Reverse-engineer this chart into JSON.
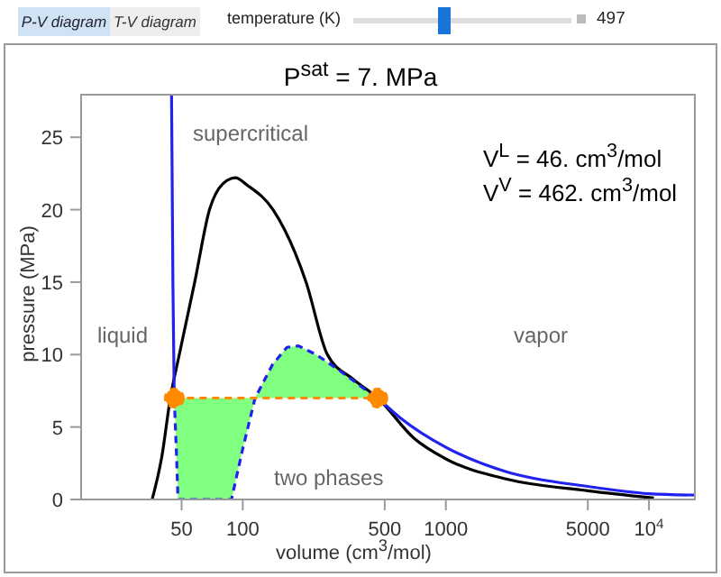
{
  "chart_data": {
    "type": "line",
    "title": "P$^{sat}$ = 7. MPa",
    "xlabel": "volume (cm$^{3}$/mol)",
    "ylabel": "pressure (MPa)",
    "log": "x",
    "xlim": [
      16,
      17000
    ],
    "xticks": [
      50,
      100,
      500,
      1000,
      5000,
      {
        "value": 10000,
        "label": "10$^{4}$"
      }
    ],
    "ylim": [
      0,
      28
    ],
    "yticks": [
      0,
      5,
      10,
      15,
      20,
      25
    ],
    "annotations": [
      "P-V diagram",
      "T-V diagram",
      "temperature (K)",
      "497",
      "supercritical",
      "liquid",
      "vapor",
      "two phases",
      "V$^{L}$ = 46. cm$^{3}$/mol",
      "V$^{V}$ = 462. cm$^{3}$/mol"
    ],
    "series": [
      {
        "color": "#000000",
        "line_style": "solid",
        "x": [
          35.8,
          40,
          44,
          48.7,
          58,
          68.6,
          80,
          92,
          105,
          141,
          205,
          261,
          350,
          462,
          700,
          1000,
          2000,
          5000,
          10570
        ],
        "values": [
          0,
          3,
          7,
          10,
          15,
          20,
          21.8,
          22.2,
          21.7,
          20,
          15,
          10,
          8.3,
          7,
          4.2,
          2.8,
          1.4,
          0.6,
          0.1
        ]
      },
      {
        "color": "#2222ee",
        "line_style": "solid",
        "x": [
          44.6,
          45.3,
          46,
          200,
          462,
          600,
          1000,
          2000,
          5000,
          10000,
          17000
        ],
        "values": [
          28,
          15,
          7,
          null,
          7,
          5.6,
          3.6,
          1.9,
          0.9,
          0.4,
          0.3
        ]
      },
      {
        "color": "#2222ee",
        "line_style": "dashed",
        "x": [
          46,
          47.2,
          48,
          88,
          100,
          115,
          140,
          165,
          188,
          230,
          300,
          400,
          462
        ],
        "values": [
          7,
          3,
          0,
          0,
          3.5,
          7,
          9.3,
          10.5,
          10.6,
          10,
          8.9,
          7.6,
          7
        ],
        "lower": [
          7,
          3,
          0,
          0,
          3.5,
          7,
          7,
          7,
          7,
          7,
          7,
          7,
          7
        ],
        "upper": [
          7,
          7,
          7,
          7,
          7,
          7,
          9.3,
          10.5,
          10.6,
          10,
          8.9,
          7.6,
          7
        ]
      },
      {
        "color": "#ff8a00",
        "line_style": "dashed",
        "marker": "circle",
        "x": [
          46,
          462
        ],
        "values": [
          7,
          7
        ]
      }
    ]
  }
}
